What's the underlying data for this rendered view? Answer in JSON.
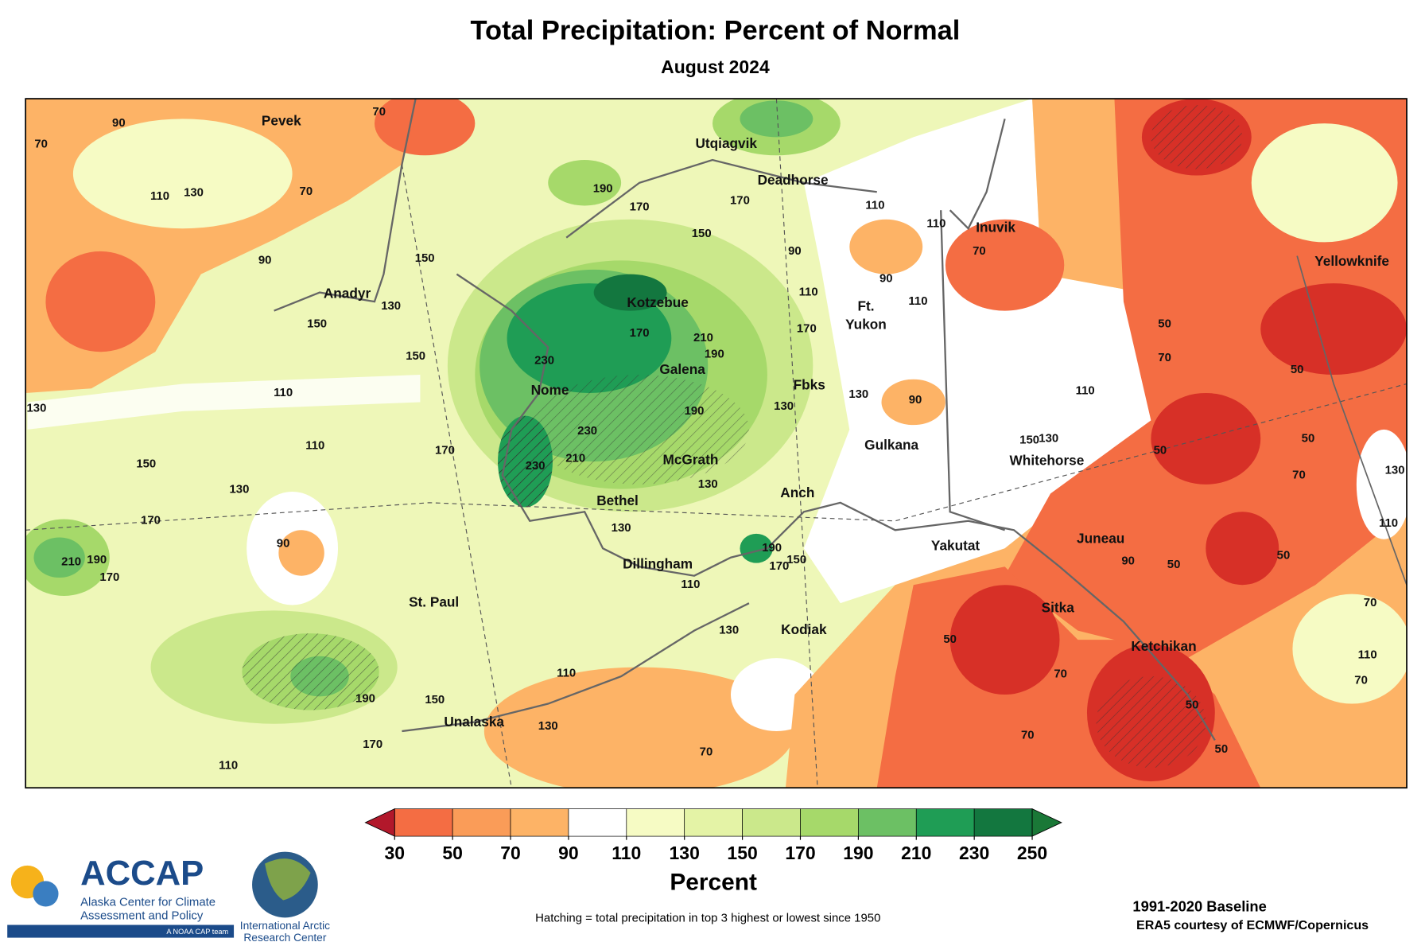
{
  "title": "Total Precipitation: Percent of Normal",
  "subtitle": "August 2024",
  "places": [
    "Pevek",
    "Utqiagvik",
    "Deadhorse",
    "Inuvik",
    "Yellowknife",
    "Anadyr",
    "Kotzebue",
    "Ft.",
    "Yukon",
    "Galena",
    "Nome",
    "Fbks",
    "Gulkana",
    "McGrath",
    "Whitehorse",
    "Anch",
    "Bethel",
    "Yakutat",
    "Juneau",
    "Dillingham",
    "St. Paul",
    "Sitka",
    "Kodiak",
    "Ketchikan",
    "Unalaska"
  ],
  "contour_labels": [
    90,
    70,
    70,
    70,
    110,
    130,
    90,
    150,
    130,
    150,
    150,
    110,
    130,
    190,
    170,
    150,
    170,
    90,
    110,
    90,
    110,
    110,
    110,
    70,
    230,
    170,
    210,
    190,
    170,
    130,
    130,
    190,
    170,
    110,
    130,
    150,
    170,
    210,
    190,
    170,
    90,
    230,
    210,
    230,
    130,
    130,
    90,
    110,
    150,
    130,
    50,
    70,
    50,
    50,
    50,
    70,
    130,
    110,
    50,
    50,
    90,
    70,
    110,
    190,
    170,
    150,
    110,
    130,
    110,
    150,
    190,
    170,
    110,
    130,
    70,
    50,
    70,
    70,
    50,
    50,
    70
  ],
  "colorbar": {
    "ticks": [
      30,
      50,
      70,
      90,
      110,
      130,
      150,
      170,
      190,
      210,
      230,
      250
    ],
    "colors": [
      "#d73027",
      "#f46d43",
      "#fa9c58",
      "#fdb366",
      "#ffffff",
      "#f6fbc4",
      "#e4f3a6",
      "#cbe88b",
      "#a6d96a",
      "#6cc064",
      "#1f9d55",
      "#13773f"
    ],
    "under_color": "#b2182b",
    "over_color": "#1a7837",
    "label": "Percent"
  },
  "hatching_note": "Hatching = total precipitation in top 3 highest or lowest since 1950",
  "baseline": "1991-2020 Baseline",
  "credit": "ERA5 courtesy of ECMWF/Copernicus",
  "logos": {
    "accap": "ACCAP",
    "accap_lines": [
      "Alaska Center for Climate",
      "Assessment and Policy"
    ],
    "noaa": "A NOAA CAP team",
    "iarc_lines": [
      "International Arctic",
      "Research Center"
    ]
  }
}
